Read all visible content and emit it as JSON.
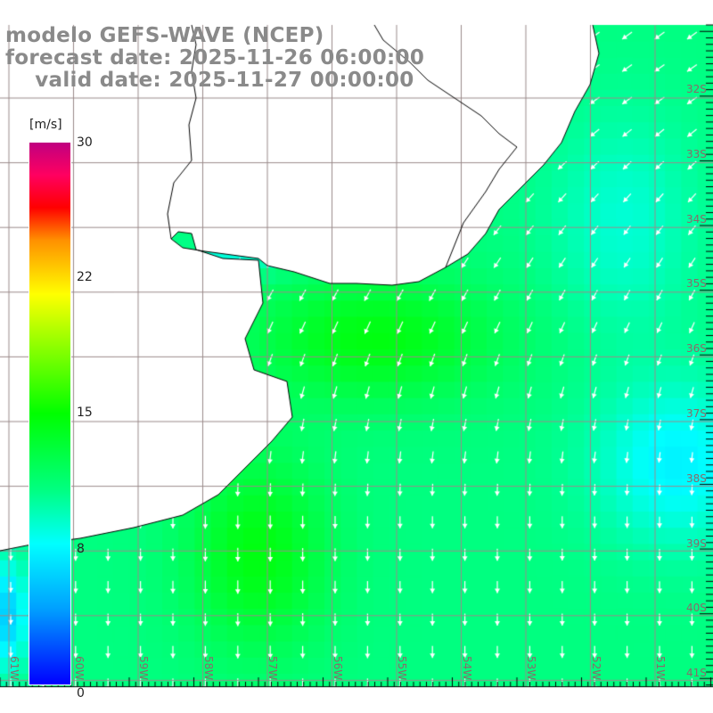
{
  "titles": {
    "model": "modelo GEFS-WAVE (NCEP)",
    "forecast": "forecast date: 2025-11-26 06:00:00",
    "valid": "    valid date: 2025-11-27 00:00:00"
  },
  "colorbar": {
    "unit": "[m/s]",
    "ticks": [
      "30",
      "22",
      "15",
      "8",
      "0"
    ],
    "tick_values": [
      30,
      22,
      15,
      8,
      0
    ]
  },
  "lat_labels": [
    "32S",
    "33S",
    "34S",
    "35S",
    "36S",
    "37S",
    "38S",
    "39S",
    "40S",
    "41S"
  ],
  "lon_labels": [
    "61W",
    "60W",
    "59W",
    "58W",
    "57W",
    "56W",
    "55W",
    "54W",
    "53W",
    "52W",
    "51W"
  ],
  "colors": {
    "land": "#ffffff",
    "grid": "#9a8a8a",
    "coast": "#000000",
    "arrow": "#ffffff"
  }
}
